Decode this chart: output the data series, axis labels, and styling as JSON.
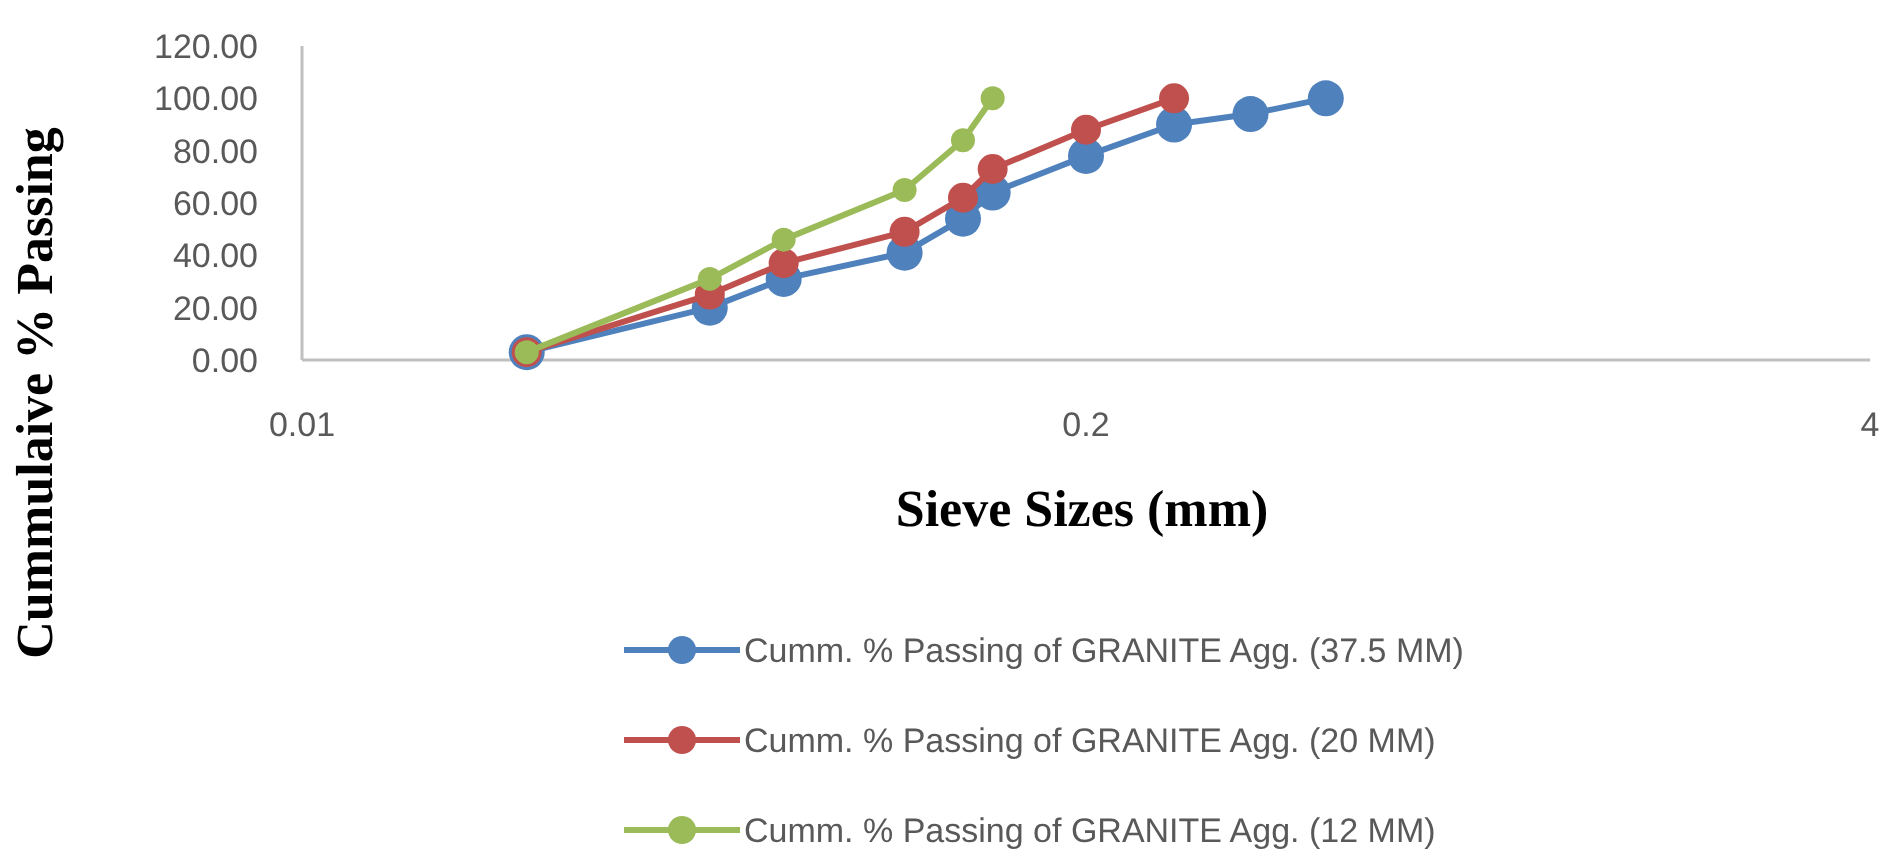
{
  "chart_data": {
    "type": "line",
    "xlabel": "Sieve Sizes (mm)",
    "ylabel": "Cummulaive % Passing",
    "log": "x",
    "xlim": [
      0.01,
      4
    ],
    "xticks": [
      0.01,
      0.2,
      4
    ],
    "ylim": [
      0,
      120
    ],
    "yticks": [
      {
        "value": 0,
        "label": "0.00"
      },
      {
        "value": 20,
        "label": "20.00"
      },
      {
        "value": 40,
        "label": "40.00"
      },
      {
        "value": 60,
        "label": "60.00"
      },
      {
        "value": 80,
        "label": "80.00"
      },
      {
        "value": 100,
        "label": "100.00"
      },
      {
        "value": 120,
        "label": "120.00"
      }
    ],
    "grid": false,
    "legend": "bottom",
    "marker": "circle",
    "line_style": "solid",
    "series": [
      {
        "name": "Cumm. % Passing of GRANITE Agg. (37.5 MM)",
        "color": "#4f81bd",
        "x": [
          0.0236,
          0.0475,
          0.063,
          0.1,
          0.125,
          0.14,
          0.2,
          0.28,
          0.375,
          0.5
        ],
        "values": [
          3,
          20,
          31,
          41,
          54,
          64,
          78,
          90,
          94,
          100
        ]
      },
      {
        "name": "Cumm. % Passing of GRANITE Agg. (20 MM)",
        "color": "#c0504d",
        "x": [
          0.0236,
          0.0475,
          0.063,
          0.1,
          0.125,
          0.14,
          0.2,
          0.28
        ],
        "values": [
          3,
          25,
          37,
          49,
          62,
          73,
          88,
          100
        ]
      },
      {
        "name": "Cumm. % Passing of GRANITE Agg. (12 MM)",
        "color": "#9bbb59",
        "x": [
          0.0236,
          0.0475,
          0.063,
          0.1,
          0.125,
          0.14
        ],
        "values": [
          3,
          31,
          46,
          65,
          84,
          100
        ]
      }
    ]
  }
}
